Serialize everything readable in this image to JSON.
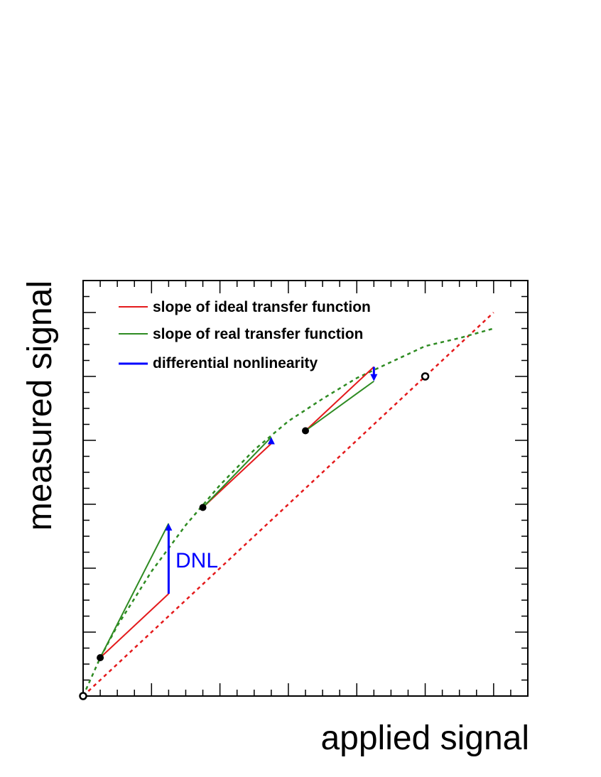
{
  "chart_data": {
    "type": "line",
    "xlabel": "applied signal",
    "ylabel": "measured signal",
    "xlim": [
      0,
      13
    ],
    "ylim": [
      0,
      13
    ],
    "grid": false,
    "legend_position": "top-left",
    "tick_labels_shown": false,
    "legend": [
      {
        "label": "slope of ideal transfer function",
        "color": "#e41a1c",
        "style": "solid"
      },
      {
        "label": "slope of real transfer function",
        "color": "#2e8b22",
        "style": "solid"
      },
      {
        "label": "differential nonlinearity",
        "color": "#0000ff",
        "style": "arrow"
      }
    ],
    "series": [
      {
        "name": "ideal transfer function",
        "style": "dashed",
        "color": "#e41a1c",
        "x": [
          0,
          12
        ],
        "y": [
          0,
          12
        ]
      },
      {
        "name": "real transfer function",
        "style": "dashed",
        "color": "#2e8b22",
        "x": [
          0,
          0.5,
          1,
          2,
          3,
          4,
          5,
          6,
          7,
          8,
          9,
          10,
          11,
          12
        ],
        "y": [
          0,
          1.2,
          2.2,
          3.9,
          5.35,
          6.6,
          7.7,
          8.6,
          9.3,
          9.95,
          10.45,
          10.95,
          11.2,
          11.5
        ]
      }
    ],
    "points": {
      "filled": [
        {
          "x": 0.5,
          "y": 1.2
        },
        {
          "x": 3.5,
          "y": 5.9
        },
        {
          "x": 6.5,
          "y": 8.3
        }
      ],
      "open": [
        {
          "x": 0,
          "y": 0
        },
        {
          "x": 10,
          "y": 10
        }
      ]
    },
    "segments": {
      "ideal_slope": [
        {
          "x": [
            0.5,
            2.5
          ],
          "y": [
            1.2,
            3.2
          ]
        },
        {
          "x": [
            3.5,
            5.5
          ],
          "y": [
            5.9,
            7.9
          ]
        },
        {
          "x": [
            6.5,
            8.5
          ],
          "y": [
            8.3,
            10.3
          ]
        }
      ],
      "real_slope": [
        {
          "x": [
            0.5,
            2.5
          ],
          "y": [
            1.2,
            5.4
          ]
        },
        {
          "x": [
            3.5,
            5.5
          ],
          "y": [
            5.9,
            8.1
          ]
        },
        {
          "x": [
            6.5,
            8.5
          ],
          "y": [
            8.3,
            9.85
          ]
        }
      ],
      "dnl_arrows": [
        {
          "x": 2.5,
          "y_from": 3.2,
          "y_to": 5.4
        },
        {
          "x": 5.5,
          "y_from": 7.9,
          "y_to": 8.1
        },
        {
          "x": 8.5,
          "y_from": 10.3,
          "y_to": 9.85
        }
      ]
    },
    "annotations": [
      {
        "text": "DNL",
        "x": 2.7,
        "y": 4.25,
        "color": "#0000ff"
      }
    ]
  }
}
